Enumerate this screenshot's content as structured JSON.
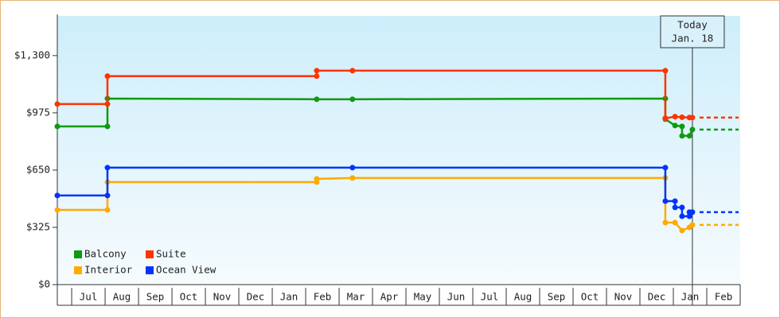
{
  "chart_data": {
    "type": "line",
    "step": true,
    "annotation": [
      "Today",
      "Jan. 18"
    ],
    "annotation_x": 18.57,
    "xlim": [
      -0.43,
      20
    ],
    "ylim": [
      0,
      1525
    ],
    "xticks": [
      {
        "value": 0.5,
        "label": "Jul"
      },
      {
        "value": 1.5,
        "label": "Aug"
      },
      {
        "value": 2.5,
        "label": "Sep"
      },
      {
        "value": 3.5,
        "label": "Oct"
      },
      {
        "value": 4.5,
        "label": "Nov"
      },
      {
        "value": 5.5,
        "label": "Dec"
      },
      {
        "value": 6.5,
        "label": "Jan"
      },
      {
        "value": 7.5,
        "label": "Feb"
      },
      {
        "value": 8.5,
        "label": "Mar"
      },
      {
        "value": 9.5,
        "label": "Apr"
      },
      {
        "value": 10.5,
        "label": "May"
      },
      {
        "value": 11.5,
        "label": "Jun"
      },
      {
        "value": 12.5,
        "label": "Jul"
      },
      {
        "value": 13.5,
        "label": "Aug"
      },
      {
        "value": 14.5,
        "label": "Sep"
      },
      {
        "value": 15.5,
        "label": "Oct"
      },
      {
        "value": 16.5,
        "label": "Nov"
      },
      {
        "value": 17.5,
        "label": "Dec"
      },
      {
        "value": 18.5,
        "label": "Jan"
      },
      {
        "value": 19.5,
        "label": "Feb"
      }
    ],
    "yticks": [
      {
        "value": 0,
        "label": "$0"
      },
      {
        "value": 325,
        "label": "$325"
      },
      {
        "value": 650,
        "label": "$650"
      },
      {
        "value": 975,
        "label": "$975"
      },
      {
        "value": 1300,
        "label": "$1,300"
      }
    ],
    "grid": false,
    "legend": "lower-left",
    "series": [
      {
        "name": "Balcony",
        "color": "#119911",
        "x": [
          -0.43,
          1.07,
          1.07,
          7.33,
          8.4,
          17.76,
          17.76,
          18.05,
          18.26,
          18.26,
          18.48,
          18.57
        ],
        "values": [
          898,
          898,
          1056,
          1052,
          1052,
          1056,
          939,
          903,
          898,
          844,
          844,
          880
        ]
      },
      {
        "name": "Suite",
        "color": "#ff3300",
        "x": [
          -0.43,
          1.07,
          1.07,
          7.33,
          7.33,
          8.4,
          17.76,
          17.76,
          18.05,
          18.26,
          18.48,
          18.57
        ],
        "values": [
          1025,
          1025,
          1183,
          1183,
          1214,
          1214,
          1214,
          944,
          953,
          950,
          948,
          948
        ]
      },
      {
        "name": "Interior",
        "color": "#ffaa00",
        "x": [
          -0.43,
          1.07,
          1.07,
          7.33,
          7.33,
          8.4,
          17.76,
          17.76,
          18.05,
          18.26,
          18.48,
          18.57
        ],
        "values": [
          424,
          424,
          582,
          582,
          600,
          605,
          605,
          352,
          352,
          307,
          325,
          339
        ]
      },
      {
        "name": "Ocean View",
        "color": "#0033ff",
        "x": [
          -0.43,
          1.07,
          1.07,
          8.4,
          17.76,
          17.76,
          18.05,
          18.05,
          18.26,
          18.26,
          18.48,
          18.48,
          18.57
        ],
        "values": [
          506,
          506,
          664,
          664,
          664,
          474,
          474,
          438,
          438,
          388,
          388,
          411,
          411
        ]
      }
    ]
  }
}
